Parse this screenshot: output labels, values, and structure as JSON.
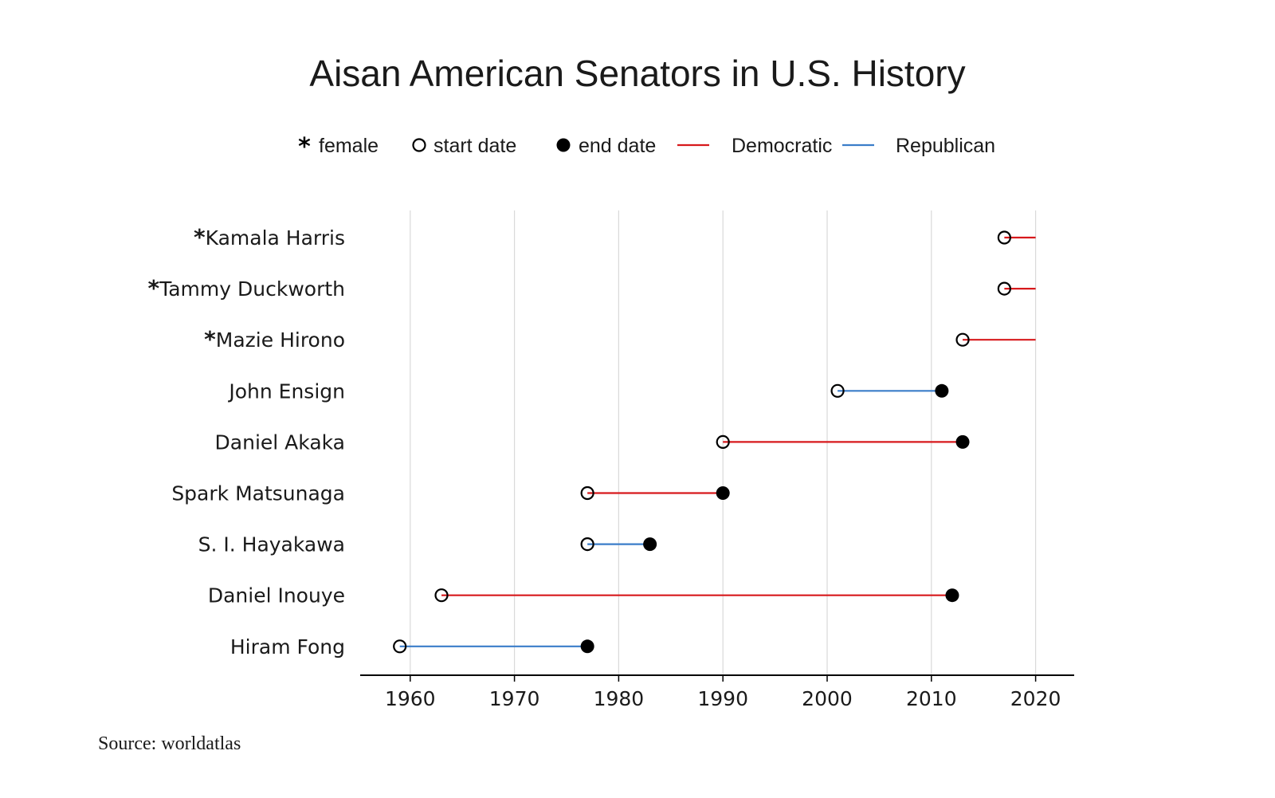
{
  "chart_data": {
    "type": "dumbbell",
    "title": "Aisan American Senators in U.S. History",
    "legend": {
      "placement": "top-center",
      "items": [
        {
          "marker": "asterisk",
          "label": "female"
        },
        {
          "marker": "open-circle",
          "label": "start date"
        },
        {
          "marker": "filled-circle",
          "label": "end date"
        },
        {
          "marker": "line",
          "color": "#d7191c",
          "label": "Democratic"
        },
        {
          "marker": "line",
          "color": "#3a7dc9",
          "label": "Republican"
        }
      ]
    },
    "female_marker": "*",
    "party_colors": {
      "Democratic": "#d7191c",
      "Republican": "#3a7dc9"
    },
    "xlim": [
      1955.2,
      2023.7
    ],
    "x_ticks": [
      1960,
      1970,
      1980,
      1990,
      2000,
      2010,
      2020
    ],
    "grid": true,
    "series": [
      {
        "name": "Kamala Harris",
        "female": true,
        "party": "Democratic",
        "start": 2017,
        "end": 2020,
        "has_end_marker": false
      },
      {
        "name": "Tammy Duckworth",
        "female": true,
        "party": "Democratic",
        "start": 2017,
        "end": 2020,
        "has_end_marker": false
      },
      {
        "name": "Mazie Hirono",
        "female": true,
        "party": "Democratic",
        "start": 2013,
        "end": 2020,
        "has_end_marker": false
      },
      {
        "name": "John Ensign",
        "female": false,
        "party": "Republican",
        "start": 2001,
        "end": 2011,
        "has_end_marker": true
      },
      {
        "name": "Daniel Akaka",
        "female": false,
        "party": "Democratic",
        "start": 1990,
        "end": 2013,
        "has_end_marker": true
      },
      {
        "name": "Spark Matsunaga",
        "female": false,
        "party": "Democratic",
        "start": 1977,
        "end": 1990,
        "has_end_marker": true
      },
      {
        "name": "S. I. Hayakawa",
        "female": false,
        "party": "Republican",
        "start": 1977,
        "end": 1983,
        "has_end_marker": true
      },
      {
        "name": "Daniel Inouye",
        "female": false,
        "party": "Democratic",
        "start": 1963,
        "end": 2012,
        "has_end_marker": true
      },
      {
        "name": "Hiram Fong",
        "female": false,
        "party": "Republican",
        "start": 1959,
        "end": 1977,
        "has_end_marker": true
      }
    ],
    "source": "Source: worldatlas"
  }
}
